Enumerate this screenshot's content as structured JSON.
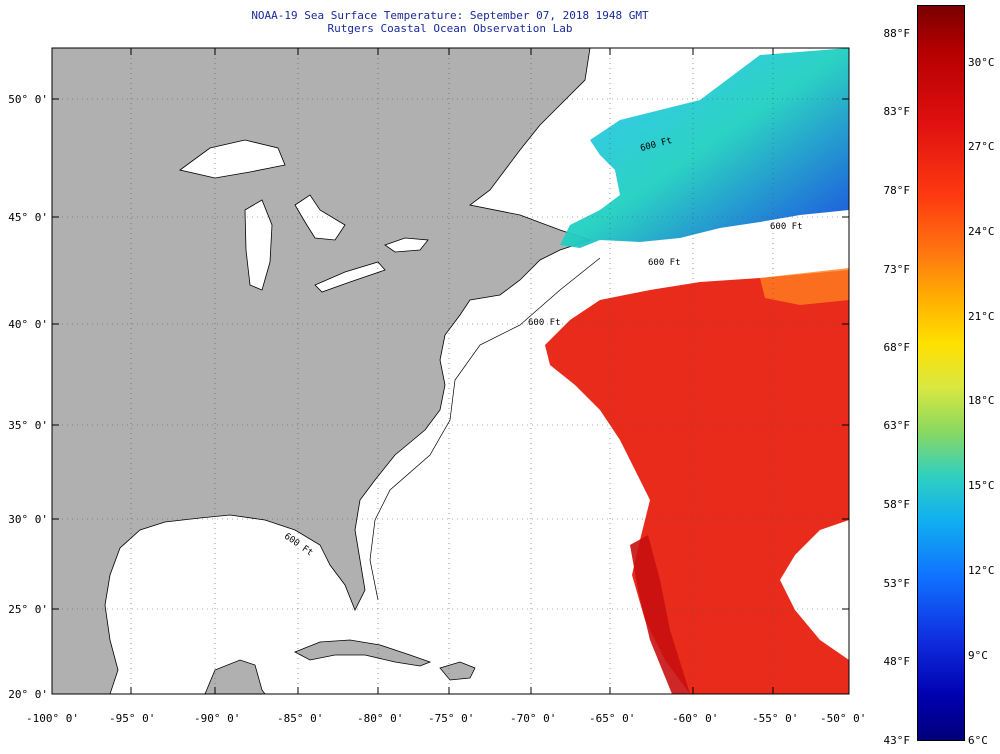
{
  "title": {
    "line1": "NOAA-19 Sea Surface Temperature:  September 07, 2018 1948 GMT",
    "line2": "Rutgers Coastal Ocean Observation Lab"
  },
  "axes": {
    "lat_labels": [
      "50° 0'",
      "45° 0'",
      "40° 0'",
      "35° 0'",
      "30° 0'",
      "25° 0'",
      "20° 0'"
    ],
    "lon_labels": [
      "-100° 0'",
      "-95° 0'",
      "-90° 0'",
      "-85° 0'",
      "-80° 0'",
      "-75° 0'",
      "-70° 0'",
      "-65° 0'",
      "-60° 0'",
      "-55° 0'",
      "-50° 0'"
    ]
  },
  "colorbar": {
    "fahrenheit": [
      "88°F",
      "83°F",
      "78°F",
      "73°F",
      "68°F",
      "63°F",
      "58°F",
      "53°F",
      "48°F",
      "43°F"
    ],
    "celsius": [
      "30°C",
      "27°C",
      "24°C",
      "21°C",
      "18°C",
      "15°C",
      "12°C",
      "9°C",
      "6°C"
    ]
  },
  "contour_labels": [
    "600 Ft",
    "600 Ft",
    "600 Ft",
    "600 Ft",
    "600 Ft"
  ],
  "colors": {
    "land": "#b0b0b0",
    "ocean_nodata": "#ffffff",
    "title": "#1a2a9a",
    "warm_sst": "#e82010",
    "cold_sst": "#1040e0"
  }
}
